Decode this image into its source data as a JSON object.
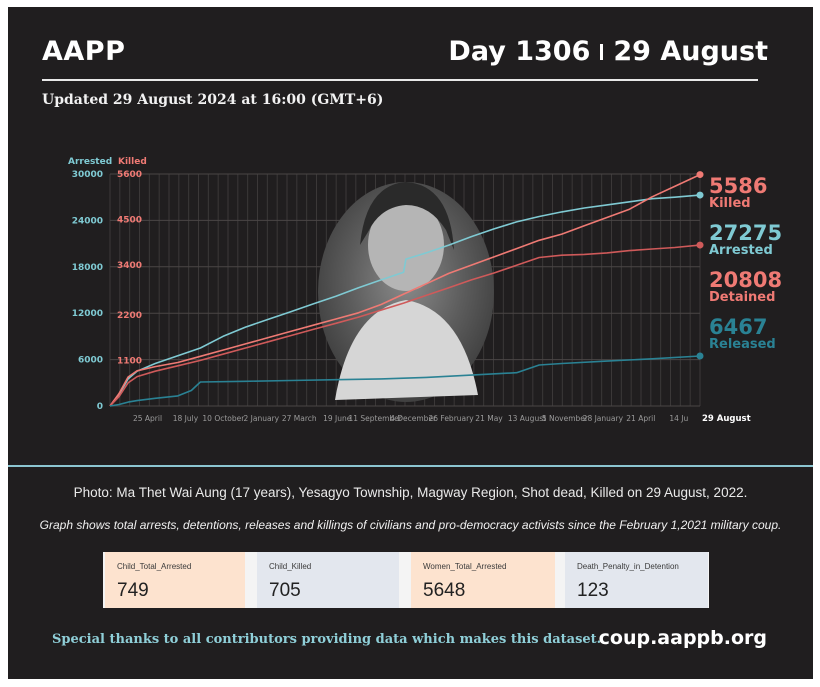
{
  "header": {
    "org": "AAPP",
    "day_label": "Day 1306",
    "date_label": "29 August",
    "updated": "Updated 29 August 2024 at 16:00 (GMT+6)"
  },
  "colors": {
    "background": "#201e1f",
    "arrested": "#7fcad3",
    "killed": "#ef7a74",
    "detained": "#cf5a5a",
    "released": "#2a8294"
  },
  "chart_data": {
    "type": "line",
    "axes": {
      "left_label": "Arrested",
      "right_label": "Killed",
      "arrested_ticks": [
        "0",
        "6000",
        "12000",
        "18000",
        "24000",
        "30000"
      ],
      "killed_ticks": [
        "1100",
        "2200",
        "3400",
        "4500",
        "5600"
      ],
      "arrested_ylim": [
        0,
        30000
      ],
      "killed_ylim": [
        0,
        5600
      ]
    },
    "x_ticks": [
      "25 April",
      "18 July",
      "10 October",
      "2 January",
      "27 March",
      "19 June",
      "11 September",
      "4 December",
      "26 February",
      "21 May",
      "13 August",
      "5 November",
      "28 January",
      "21 April",
      "14 Ju",
      "29 August"
    ],
    "x_ticks_days": [
      83,
      167,
      251,
      335,
      419,
      503,
      587,
      671,
      755,
      839,
      923,
      1007,
      1091,
      1175,
      1259,
      1306
    ],
    "xlim": [
      0,
      1306
    ],
    "grid": true,
    "series": [
      {
        "name": "Arrested",
        "axis": "arrested",
        "final": "27275",
        "x": [
          0,
          20,
          40,
          60,
          100,
          150,
          200,
          250,
          300,
          350,
          400,
          450,
          500,
          550,
          600,
          650,
          655,
          700,
          750,
          800,
          850,
          900,
          950,
          1000,
          1050,
          1100,
          1150,
          1200,
          1250,
          1306
        ],
        "y": [
          0,
          1500,
          3500,
          4500,
          5500,
          6500,
          7500,
          9000,
          10200,
          11200,
          12200,
          13200,
          14200,
          15300,
          16300,
          17300,
          19000,
          19800,
          20800,
          21900,
          22900,
          23800,
          24500,
          25100,
          25600,
          26000,
          26400,
          26800,
          27000,
          27275
        ]
      },
      {
        "name": "Killed",
        "axis": "killed",
        "final": "5586",
        "x": [
          0,
          20,
          40,
          60,
          100,
          150,
          200,
          250,
          300,
          350,
          400,
          450,
          500,
          550,
          600,
          650,
          700,
          750,
          800,
          850,
          900,
          950,
          1000,
          1050,
          1100,
          1150,
          1200,
          1250,
          1306
        ],
        "y": [
          0,
          300,
          700,
          850,
          950,
          1050,
          1200,
          1350,
          1500,
          1650,
          1800,
          1950,
          2100,
          2250,
          2450,
          2700,
          2950,
          3200,
          3400,
          3600,
          3800,
          4000,
          4150,
          4350,
          4550,
          4750,
          5050,
          5300,
          5586
        ]
      },
      {
        "name": "Detained",
        "axis": "arrested",
        "final": "20808",
        "x": [
          0,
          20,
          40,
          60,
          100,
          150,
          200,
          250,
          300,
          350,
          400,
          450,
          500,
          550,
          600,
          650,
          700,
          750,
          800,
          850,
          900,
          950,
          1000,
          1050,
          1100,
          1150,
          1200,
          1250,
          1306
        ],
        "y": [
          0,
          1200,
          3000,
          3800,
          4500,
          5200,
          5900,
          6700,
          7500,
          8300,
          9100,
          9900,
          10700,
          11500,
          12400,
          13300,
          14300,
          15300,
          16300,
          17200,
          18200,
          19200,
          19500,
          19600,
          19800,
          20100,
          20300,
          20500,
          20808
        ]
      },
      {
        "name": "Released",
        "axis": "arrested",
        "final": "6467",
        "x": [
          0,
          20,
          40,
          60,
          100,
          150,
          180,
          200,
          300,
          400,
          500,
          600,
          700,
          800,
          900,
          950,
          1000,
          1100,
          1200,
          1306
        ],
        "y": [
          0,
          200,
          500,
          700,
          1000,
          1300,
          2000,
          3100,
          3200,
          3300,
          3400,
          3500,
          3700,
          4000,
          4300,
          5300,
          5500,
          5800,
          6100,
          6467
        ]
      }
    ],
    "end_labels": [
      {
        "value": "5586",
        "label": "Killed"
      },
      {
        "value": "27275",
        "label": "Arrested"
      },
      {
        "value": "20808",
        "label": "Detained"
      },
      {
        "value": "6467",
        "label": "Released"
      }
    ]
  },
  "caption": "Photo: Ma Thet Wai Aung (17 years), Yesagyo Township, Magway Region, Shot dead, Killed on 29 August, 2022.",
  "note": "Graph shows total arrests, detentions, releases and killings of civilians and pro-democracy activists since the February 1,2021 military coup.",
  "cards": [
    {
      "label": "Child_Total_Arrested",
      "value": "749",
      "color": "#fde3cf"
    },
    {
      "label": "Child_Killed",
      "value": "705",
      "color": "#e3e7ee"
    },
    {
      "label": "Women_Total_Arrested",
      "value": "5648",
      "color": "#fde3cf"
    },
    {
      "label": "Death_Penalty_in_Detention",
      "value": "123",
      "color": "#e3e7ee"
    }
  ],
  "footer": {
    "thanks": "Special thanks to all contributors providing data which makes this dataset.",
    "site": "coup.aappb.org"
  }
}
